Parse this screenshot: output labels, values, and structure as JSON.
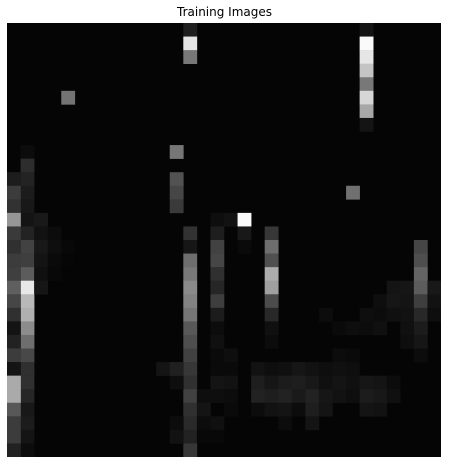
{
  "figure": {
    "title": "Training Images",
    "background_color": "#050505",
    "grid": {
      "columns": 32,
      "rows": 32,
      "cells": [
        [
          13,
          0,
          31
        ],
        [
          13,
          1,
          229
        ],
        [
          13,
          2,
          120
        ],
        [
          26,
          0,
          20
        ],
        [
          26,
          1,
          250
        ],
        [
          26,
          2,
          230
        ],
        [
          26,
          3,
          196
        ],
        [
          26,
          4,
          120
        ],
        [
          26,
          5,
          214
        ],
        [
          26,
          6,
          168
        ],
        [
          26,
          7,
          20
        ],
        [
          4,
          5,
          115
        ],
        [
          12,
          9,
          118
        ],
        [
          25,
          12,
          112
        ],
        [
          1,
          9,
          12
        ],
        [
          1,
          10,
          45
        ],
        [
          1,
          11,
          35
        ],
        [
          1,
          12,
          28
        ],
        [
          1,
          13,
          24
        ],
        [
          1,
          14,
          20
        ],
        [
          1,
          15,
          35
        ],
        [
          1,
          16,
          66
        ],
        [
          1,
          17,
          63
        ],
        [
          1,
          18,
          92
        ],
        [
          1,
          19,
          232
        ],
        [
          1,
          20,
          185
        ],
        [
          1,
          21,
          176
        ],
        [
          1,
          22,
          140
        ],
        [
          1,
          23,
          110
        ],
        [
          1,
          24,
          72
        ],
        [
          1,
          25,
          48
        ],
        [
          1,
          26,
          48
        ],
        [
          1,
          27,
          38
        ],
        [
          1,
          28,
          24
        ],
        [
          1,
          29,
          28
        ],
        [
          1,
          30,
          20
        ],
        [
          1,
          31,
          12
        ],
        [
          0,
          11,
          29
        ],
        [
          0,
          12,
          60
        ],
        [
          0,
          13,
          50
        ],
        [
          0,
          14,
          150
        ],
        [
          0,
          15,
          58
        ],
        [
          0,
          16,
          48
        ],
        [
          0,
          17,
          60
        ],
        [
          0,
          18,
          63
        ],
        [
          0,
          19,
          95
        ],
        [
          0,
          20,
          70
        ],
        [
          0,
          21,
          48
        ],
        [
          0,
          22,
          20
        ],
        [
          0,
          23,
          34
        ],
        [
          0,
          24,
          60
        ],
        [
          0,
          25,
          20
        ],
        [
          0,
          26,
          170
        ],
        [
          0,
          27,
          170
        ],
        [
          0,
          28,
          88
        ],
        [
          0,
          29,
          60
        ],
        [
          0,
          30,
          60
        ],
        [
          0,
          31,
          34
        ],
        [
          2,
          14,
          25
        ],
        [
          2,
          15,
          18
        ],
        [
          2,
          16,
          24
        ],
        [
          2,
          17,
          20
        ],
        [
          2,
          18,
          16
        ],
        [
          2,
          19,
          22
        ],
        [
          3,
          15,
          12
        ],
        [
          3,
          16,
          14
        ],
        [
          3,
          17,
          10
        ],
        [
          3,
          18,
          8
        ],
        [
          4,
          16,
          8
        ],
        [
          4,
          17,
          6
        ],
        [
          12,
          11,
          82
        ],
        [
          12,
          12,
          70
        ],
        [
          12,
          13,
          58
        ],
        [
          13,
          15,
          50
        ],
        [
          13,
          16,
          22
        ],
        [
          13,
          17,
          110
        ],
        [
          13,
          18,
          120
        ],
        [
          13,
          19,
          138
        ],
        [
          13,
          20,
          130
        ],
        [
          13,
          21,
          118
        ],
        [
          13,
          22,
          88
        ],
        [
          13,
          23,
          78
        ],
        [
          13,
          24,
          65
        ],
        [
          13,
          25,
          55
        ],
        [
          13,
          26,
          48
        ],
        [
          13,
          27,
          65
        ],
        [
          13,
          28,
          48
        ],
        [
          13,
          29,
          42
        ],
        [
          13,
          30,
          34
        ],
        [
          13,
          31,
          55
        ],
        [
          12,
          26,
          14
        ],
        [
          12,
          29,
          12
        ],
        [
          12,
          30,
          18
        ],
        [
          14,
          27,
          14
        ],
        [
          14,
          28,
          20
        ],
        [
          14,
          29,
          12
        ],
        [
          14,
          30,
          8
        ],
        [
          15,
          26,
          20
        ],
        [
          15,
          27,
          14
        ],
        [
          15,
          29,
          16
        ],
        [
          15,
          30,
          8
        ],
        [
          15,
          14,
          14
        ],
        [
          16,
          14,
          18
        ],
        [
          17,
          14,
          250
        ],
        [
          17,
          15,
          24
        ],
        [
          17,
          16,
          10
        ],
        [
          15,
          15,
          30
        ],
        [
          15,
          16,
          66
        ],
        [
          15,
          17,
          70
        ],
        [
          15,
          18,
          48
        ],
        [
          15,
          19,
          38
        ],
        [
          15,
          20,
          62
        ],
        [
          15,
          21,
          28
        ],
        [
          15,
          22,
          12
        ],
        [
          15,
          23,
          16
        ],
        [
          15,
          24,
          10
        ],
        [
          15,
          25,
          10
        ],
        [
          16,
          24,
          14
        ],
        [
          16,
          25,
          10
        ],
        [
          16,
          26,
          18
        ],
        [
          16,
          27,
          12
        ],
        [
          16,
          28,
          10
        ],
        [
          19,
          15,
          55
        ],
        [
          19,
          16,
          110
        ],
        [
          19,
          17,
          80
        ],
        [
          19,
          18,
          172
        ],
        [
          19,
          19,
          160
        ],
        [
          19,
          20,
          76
        ],
        [
          19,
          21,
          40
        ],
        [
          19,
          22,
          16
        ],
        [
          19,
          23,
          12
        ],
        [
          18,
          25,
          18
        ],
        [
          18,
          26,
          30
        ],
        [
          18,
          27,
          34
        ],
        [
          18,
          28,
          12
        ],
        [
          19,
          25,
          14
        ],
        [
          19,
          26,
          22
        ],
        [
          19,
          27,
          30
        ],
        [
          19,
          28,
          18
        ],
        [
          20,
          25,
          16
        ],
        [
          20,
          26,
          28
        ],
        [
          20,
          27,
          34
        ],
        [
          20,
          28,
          20
        ],
        [
          20,
          29,
          12
        ],
        [
          21,
          25,
          22
        ],
        [
          21,
          26,
          30
        ],
        [
          21,
          27,
          26
        ],
        [
          21,
          28,
          12
        ],
        [
          22,
          25,
          18
        ],
        [
          22,
          26,
          24
        ],
        [
          22,
          27,
          34
        ],
        [
          22,
          28,
          30
        ],
        [
          22,
          29,
          20
        ],
        [
          23,
          25,
          14
        ],
        [
          23,
          26,
          16
        ],
        [
          23,
          27,
          22
        ],
        [
          23,
          28,
          20
        ],
        [
          24,
          24,
          12
        ],
        [
          24,
          25,
          16
        ],
        [
          24,
          26,
          20
        ],
        [
          24,
          27,
          18
        ],
        [
          25,
          24,
          10
        ],
        [
          25,
          25,
          14
        ],
        [
          25,
          26,
          16
        ],
        [
          25,
          27,
          14
        ],
        [
          23,
          21,
          12
        ],
        [
          24,
          22,
          10
        ],
        [
          25,
          22,
          14
        ],
        [
          26,
          21,
          14
        ],
        [
          26,
          22,
          12
        ],
        [
          26,
          26,
          22
        ],
        [
          26,
          27,
          28
        ],
        [
          26,
          28,
          20
        ],
        [
          27,
          20,
          14
        ],
        [
          27,
          21,
          12
        ],
        [
          27,
          22,
          16
        ],
        [
          27,
          26,
          20
        ],
        [
          27,
          27,
          24
        ],
        [
          27,
          28,
          18
        ],
        [
          28,
          19,
          20
        ],
        [
          28,
          20,
          22
        ],
        [
          28,
          21,
          16
        ],
        [
          28,
          26,
          12
        ],
        [
          28,
          27,
          16
        ],
        [
          29,
          19,
          22
        ],
        [
          29,
          20,
          20
        ],
        [
          29,
          21,
          18
        ],
        [
          29,
          22,
          16
        ],
        [
          29,
          23,
          14
        ],
        [
          30,
          16,
          70
        ],
        [
          30,
          17,
          78
        ],
        [
          30,
          18,
          100
        ],
        [
          30,
          19,
          92
        ],
        [
          30,
          20,
          62
        ],
        [
          30,
          21,
          40
        ],
        [
          30,
          22,
          28
        ],
        [
          30,
          23,
          22
        ],
        [
          30,
          24,
          12
        ],
        [
          31,
          19,
          24
        ],
        [
          31,
          20,
          18
        ],
        [
          31,
          21,
          14
        ],
        [
          11,
          25,
          20
        ],
        [
          12,
          25,
          32
        ]
      ]
    }
  }
}
